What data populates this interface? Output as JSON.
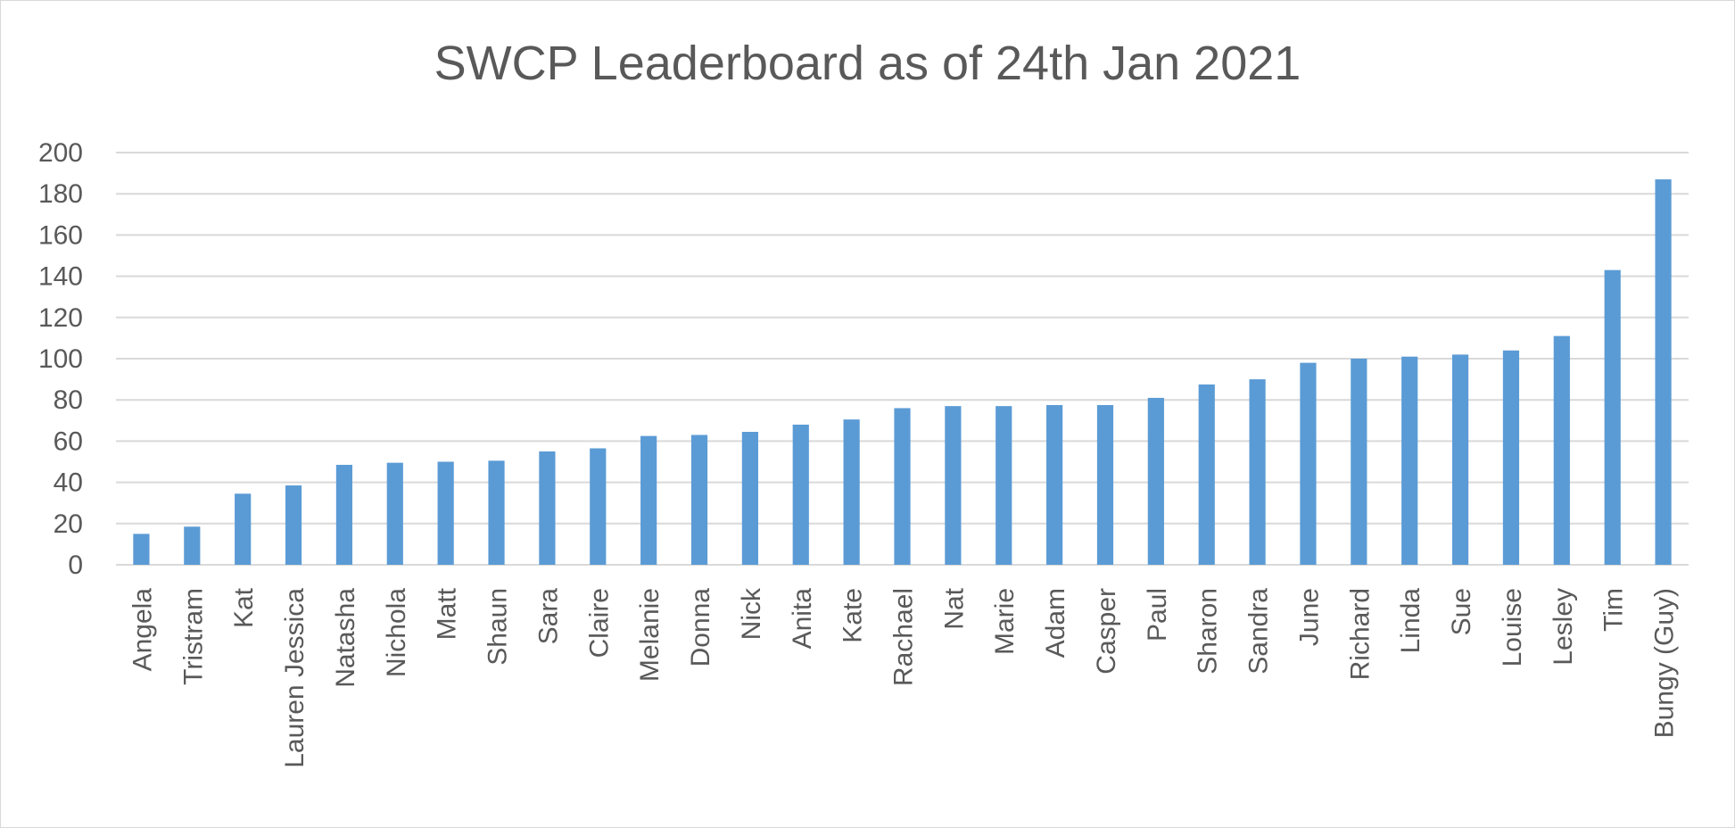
{
  "chart_data": {
    "type": "bar",
    "title": "SWCP Leaderboard as of 24th Jan 2021",
    "xlabel": "",
    "ylabel": "",
    "ylim": [
      0,
      200
    ],
    "yticks": [
      0,
      20,
      40,
      60,
      80,
      100,
      120,
      140,
      160,
      180,
      200
    ],
    "grid": true,
    "legend": "none",
    "bar_color": "#5b9bd5",
    "categories": [
      "Angela",
      "Tristram",
      "Kat",
      "Lauren Jessica",
      "Natasha",
      "Nichola",
      "Matt",
      "Shaun",
      "Sara",
      "Claire",
      "Melanie",
      "Donna",
      "Nick",
      "Anita",
      "Kate",
      "Rachael",
      "Nat",
      "Marie",
      "Adam",
      "Casper",
      "Paul",
      "Sharon",
      "Sandra",
      "June",
      "Richard",
      "Linda",
      "Sue",
      "Louise",
      "Lesley",
      "Tim",
      "Bungy (Guy)"
    ],
    "values": [
      15,
      18.5,
      34.5,
      38.5,
      48.5,
      49.5,
      50,
      50.5,
      55,
      56.5,
      62.5,
      63,
      64.5,
      68,
      70.5,
      76,
      77,
      77,
      77.5,
      77.5,
      81,
      87.5,
      90,
      98,
      100,
      101,
      102,
      104,
      111,
      143,
      187
    ]
  }
}
